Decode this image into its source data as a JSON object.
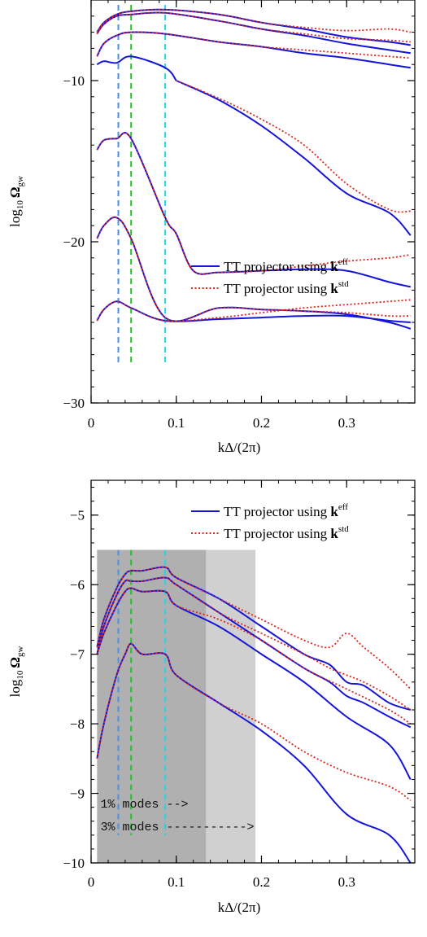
{
  "chart_data": [
    {
      "type": "line",
      "xlabel": "kΔ/(2π)",
      "ylabel": "log10 Ωgw",
      "xlim": [
        0,
        0.38
      ],
      "ylim": [
        -30,
        -5
      ],
      "xticks": [
        0,
        0.1,
        0.2,
        0.3
      ],
      "xtick_labels": [
        "0",
        "0.1",
        "0.2",
        "0.3"
      ],
      "yticks": [
        -10,
        -20,
        -30
      ],
      "ytick_labels": [
        "−10",
        "−20",
        "−30"
      ],
      "legend": {
        "placement": "bottom-right",
        "entries": [
          {
            "label": "TT projector using ",
            "bold": "k",
            "sup": "eff",
            "style": "solid",
            "color": "#1515d8"
          },
          {
            "label": "TT projector using ",
            "bold": "k",
            "sup": "std",
            "style": "dotted",
            "color": "#e0241b"
          }
        ]
      },
      "vlines": [
        {
          "x": 0.032,
          "color": "#4a90e8"
        },
        {
          "x": 0.047,
          "color": "#22c322"
        },
        {
          "x": 0.087,
          "color": "#22d6e6"
        }
      ],
      "series": [
        {
          "style": "solid",
          "color": "#1515d8",
          "x": [
            0.007,
            0.015,
            0.03,
            0.047,
            0.087,
            0.15,
            0.2,
            0.25,
            0.3,
            0.35,
            0.375
          ],
          "y": [
            -7.0,
            -6.4,
            -5.9,
            -5.7,
            -5.6,
            -5.9,
            -6.4,
            -6.8,
            -7.3,
            -7.6,
            -7.8
          ]
        },
        {
          "style": "dotted",
          "color": "#e0241b",
          "x": [
            0.007,
            0.015,
            0.03,
            0.047,
            0.087,
            0.15,
            0.2,
            0.25,
            0.3,
            0.35,
            0.375
          ],
          "y": [
            -7.0,
            -6.4,
            -5.9,
            -5.7,
            -5.6,
            -5.9,
            -6.4,
            -6.7,
            -6.9,
            -6.8,
            -7.0
          ]
        },
        {
          "style": "solid",
          "color": "#1515d8",
          "x": [
            0.007,
            0.015,
            0.03,
            0.047,
            0.087,
            0.15,
            0.2,
            0.25,
            0.3,
            0.35,
            0.375
          ],
          "y": [
            -7.1,
            -6.5,
            -6.0,
            -5.9,
            -5.8,
            -6.3,
            -6.8,
            -7.2,
            -7.7,
            -8.1,
            -8.3
          ]
        },
        {
          "style": "dotted",
          "color": "#e0241b",
          "x": [
            0.007,
            0.015,
            0.03,
            0.047,
            0.087,
            0.15,
            0.2,
            0.25,
            0.3,
            0.35,
            0.375
          ],
          "y": [
            -7.1,
            -6.5,
            -6.0,
            -5.9,
            -5.8,
            -6.3,
            -6.8,
            -7.1,
            -7.4,
            -7.5,
            -7.6
          ]
        },
        {
          "style": "solid",
          "color": "#1515d8",
          "x": [
            0.007,
            0.015,
            0.03,
            0.047,
            0.087,
            0.15,
            0.2,
            0.25,
            0.3,
            0.35,
            0.375
          ],
          "y": [
            -8.5,
            -7.7,
            -7.2,
            -7.0,
            -7.1,
            -7.6,
            -7.9,
            -8.3,
            -8.6,
            -9.0,
            -9.2
          ]
        },
        {
          "style": "dotted",
          "color": "#e0241b",
          "x": [
            0.007,
            0.015,
            0.03,
            0.047,
            0.087,
            0.15,
            0.2,
            0.25,
            0.3,
            0.35,
            0.375
          ],
          "y": [
            -8.5,
            -7.7,
            -7.2,
            -7.0,
            -7.1,
            -7.6,
            -7.9,
            -8.1,
            -8.3,
            -8.5,
            -8.6
          ]
        },
        {
          "style": "solid",
          "color": "#1515d8",
          "x": [
            0.007,
            0.015,
            0.03,
            0.047,
            0.087,
            0.1
          ],
          "y": [
            -9.0,
            -8.8,
            -8.9,
            -8.5,
            -9.2,
            -10.0
          ]
        },
        {
          "style": "solid",
          "color": "#1515d8",
          "x": [
            0.1,
            0.15,
            0.2,
            0.25,
            0.3,
            0.35,
            0.375
          ],
          "y": [
            -10.0,
            -11.2,
            -12.8,
            -14.8,
            -17.0,
            -18.2,
            -19.6
          ]
        },
        {
          "style": "dotted",
          "color": "#e0241b",
          "x": [
            0.1,
            0.15,
            0.2,
            0.25,
            0.3,
            0.35,
            0.375
          ],
          "y": [
            -10.0,
            -11.1,
            -12.4,
            -14.0,
            -16.4,
            -18.0,
            -18.1
          ]
        },
        {
          "style": "solid",
          "color": "#1515d8",
          "x": [
            0.007,
            0.015,
            0.03,
            0.047,
            0.087,
            0.1,
            0.12,
            0.15,
            0.2,
            0.25,
            0.3,
            0.35,
            0.375
          ],
          "y": [
            -14.3,
            -13.7,
            -13.6,
            -13.6,
            -18.5,
            -19.5,
            -21.8,
            -21.9,
            -21.8,
            -21.7,
            -21.8,
            -22.5,
            -22.8
          ]
        },
        {
          "style": "dotted",
          "color": "#e0241b",
          "x": [
            0.007,
            0.015,
            0.03,
            0.047,
            0.087,
            0.1,
            0.12,
            0.15,
            0.2,
            0.25,
            0.3,
            0.35,
            0.375
          ],
          "y": [
            -14.3,
            -13.7,
            -13.6,
            -13.6,
            -18.5,
            -19.5,
            -21.8,
            -21.9,
            -21.8,
            -21.5,
            -21.2,
            -21.0,
            -20.8
          ]
        },
        {
          "style": "solid",
          "color": "#1515d8",
          "x": [
            0.007,
            0.015,
            0.03,
            0.047,
            0.087,
            0.15,
            0.2,
            0.25,
            0.3,
            0.35,
            0.375
          ],
          "y": [
            -19.8,
            -19.0,
            -18.5,
            -19.8,
            -24.7,
            -24.1,
            -24.2,
            -24.3,
            -24.5,
            -25.0,
            -25.4
          ]
        },
        {
          "style": "dotted",
          "color": "#e0241b",
          "x": [
            0.007,
            0.015,
            0.03,
            0.047,
            0.087,
            0.15,
            0.2,
            0.25,
            0.3,
            0.35,
            0.375
          ],
          "y": [
            -19.8,
            -19.0,
            -18.5,
            -19.8,
            -24.7,
            -24.1,
            -24.2,
            -24.3,
            -24.4,
            -24.6,
            -24.6
          ]
        },
        {
          "style": "solid",
          "color": "#1515d8",
          "x": [
            0.007,
            0.015,
            0.03,
            0.047,
            0.087,
            0.15,
            0.2,
            0.25,
            0.3,
            0.35,
            0.375
          ],
          "y": [
            -24.9,
            -24.2,
            -23.7,
            -24.1,
            -24.9,
            -24.8,
            -24.7,
            -24.6,
            -24.6,
            -24.9,
            -25.0
          ]
        },
        {
          "style": "dotted",
          "color": "#e0241b",
          "x": [
            0.007,
            0.015,
            0.03,
            0.047,
            0.087,
            0.15,
            0.2,
            0.25,
            0.3,
            0.35,
            0.375
          ],
          "y": [
            -24.9,
            -24.2,
            -23.7,
            -24.1,
            -24.9,
            -24.7,
            -24.4,
            -24.1,
            -23.9,
            -23.7,
            -23.6
          ]
        }
      ]
    },
    {
      "type": "line",
      "xlabel": "kΔ/(2π)",
      "ylabel": "log10 Ωgw",
      "xlim": [
        0,
        0.38
      ],
      "ylim": [
        -10,
        -4.5
      ],
      "xticks": [
        0,
        0.1,
        0.2,
        0.3
      ],
      "xtick_labels": [
        "0",
        "0.1",
        "0.2",
        "0.3"
      ],
      "yticks": [
        -5,
        -6,
        -7,
        -8,
        -9,
        -10
      ],
      "ytick_labels": [
        "−5",
        "−6",
        "−7",
        "−8",
        "−9",
        "−10"
      ],
      "legend": {
        "placement": "top-right",
        "entries": [
          {
            "label": "TT projector using ",
            "bold": "k",
            "sup": "eff",
            "style": "solid",
            "color": "#1515d8"
          },
          {
            "label": "TT projector using ",
            "bold": "k",
            "sup": "std",
            "style": "dotted",
            "color": "#e0241b"
          }
        ]
      },
      "shaded_regions": [
        {
          "label": "1% modes -->",
          "x": [
            0.007,
            0.135
          ],
          "y": [
            -10,
            -5.5
          ],
          "color": "#b0b0b0"
        },
        {
          "label": "3% modes ----------->",
          "x": [
            0.135,
            0.193
          ],
          "y": [
            -10,
            -5.5
          ],
          "color": "#d0d0d0"
        }
      ],
      "vlines": [
        {
          "x": 0.032,
          "color": "#4a90e8"
        },
        {
          "x": 0.047,
          "color": "#22c322"
        },
        {
          "x": 0.087,
          "color": "#22d6e6"
        }
      ],
      "series": [
        {
          "style": "solid",
          "color": "#1515d8",
          "x": [
            0.007,
            0.015,
            0.03,
            0.04,
            0.047,
            0.06,
            0.087,
            0.1,
            0.15,
            0.2,
            0.25,
            0.28,
            0.3,
            0.32,
            0.35,
            0.375
          ],
          "y": [
            -6.9,
            -6.5,
            -6.05,
            -5.85,
            -5.8,
            -5.8,
            -5.75,
            -5.9,
            -6.2,
            -6.6,
            -7.0,
            -7.15,
            -7.4,
            -7.45,
            -7.7,
            -7.8
          ]
        },
        {
          "style": "dotted",
          "color": "#e0241b",
          "x": [
            0.007,
            0.015,
            0.03,
            0.04,
            0.047,
            0.06,
            0.087,
            0.1,
            0.15,
            0.2,
            0.25,
            0.28,
            0.3,
            0.32,
            0.35,
            0.375
          ],
          "y": [
            -6.9,
            -6.5,
            -6.05,
            -5.85,
            -5.8,
            -5.8,
            -5.75,
            -5.9,
            -6.2,
            -6.5,
            -6.8,
            -6.9,
            -6.7,
            -6.9,
            -7.2,
            -7.5
          ]
        },
        {
          "style": "solid",
          "color": "#1515d8",
          "x": [
            0.007,
            0.015,
            0.03,
            0.04,
            0.047,
            0.06,
            0.087,
            0.1,
            0.15,
            0.2,
            0.25,
            0.28,
            0.3,
            0.32,
            0.35,
            0.375
          ],
          "y": [
            -7.0,
            -6.6,
            -6.15,
            -5.95,
            -5.95,
            -5.95,
            -5.9,
            -6.0,
            -6.4,
            -6.8,
            -7.2,
            -7.4,
            -7.6,
            -7.7,
            -7.9,
            -8.05
          ]
        },
        {
          "style": "dotted",
          "color": "#e0241b",
          "x": [
            0.007,
            0.015,
            0.03,
            0.04,
            0.047,
            0.06,
            0.087,
            0.1,
            0.15,
            0.2,
            0.25,
            0.28,
            0.3,
            0.32,
            0.35,
            0.375
          ],
          "y": [
            -7.0,
            -6.6,
            -6.15,
            -5.95,
            -5.95,
            -5.95,
            -5.9,
            -6.0,
            -6.4,
            -6.7,
            -7.0,
            -7.2,
            -7.3,
            -7.4,
            -7.6,
            -7.8
          ]
        },
        {
          "style": "solid",
          "color": "#1515d8",
          "x": [
            0.007,
            0.015,
            0.03,
            0.04,
            0.047,
            0.06,
            0.087,
            0.1,
            0.15,
            0.2,
            0.25,
            0.3,
            0.35,
            0.375
          ],
          "y": [
            -7.0,
            -6.7,
            -6.3,
            -6.1,
            -6.05,
            -6.1,
            -6.1,
            -6.3,
            -6.6,
            -7.0,
            -7.4,
            -7.9,
            -8.3,
            -8.8
          ]
        },
        {
          "style": "dotted",
          "color": "#e0241b",
          "x": [
            0.007,
            0.015,
            0.03,
            0.04,
            0.047,
            0.06,
            0.087,
            0.1,
            0.15,
            0.2,
            0.25,
            0.3,
            0.35,
            0.375
          ],
          "y": [
            -7.0,
            -6.7,
            -6.3,
            -6.1,
            -6.05,
            -6.1,
            -6.1,
            -6.3,
            -6.5,
            -6.8,
            -7.2,
            -7.5,
            -7.8,
            -8.0
          ]
        },
        {
          "style": "solid",
          "color": "#1515d8",
          "x": [
            0.007,
            0.015,
            0.03,
            0.04,
            0.047,
            0.06,
            0.087,
            0.1,
            0.15,
            0.2,
            0.25,
            0.3,
            0.35,
            0.375
          ],
          "y": [
            -8.5,
            -8.0,
            -7.3,
            -7.0,
            -6.85,
            -7.0,
            -7.0,
            -7.3,
            -7.7,
            -8.1,
            -8.6,
            -9.3,
            -9.6,
            -10.0
          ]
        },
        {
          "style": "dotted",
          "color": "#e0241b",
          "x": [
            0.007,
            0.015,
            0.03,
            0.04,
            0.047,
            0.06,
            0.087,
            0.1,
            0.15,
            0.2,
            0.25,
            0.3,
            0.35,
            0.375
          ],
          "y": [
            -8.5,
            -8.0,
            -7.3,
            -7.0,
            -6.85,
            -7.0,
            -7.0,
            -7.3,
            -7.7,
            -8.0,
            -8.4,
            -8.7,
            -8.9,
            -9.1
          ]
        }
      ]
    }
  ]
}
